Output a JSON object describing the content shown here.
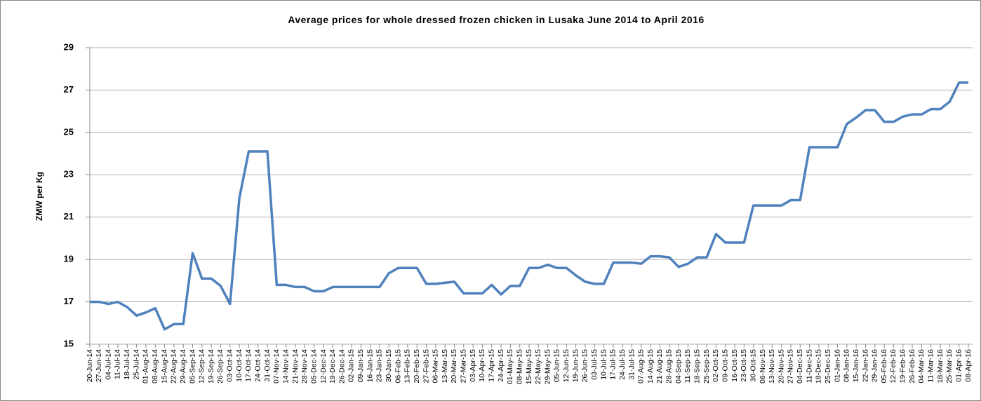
{
  "chart_data": {
    "type": "line",
    "title": "Average prices for whole dressed frozen chicken in Lusaka June 2014 to  April 2016",
    "y_label": "ZMW per Kg",
    "categories": [
      "20-Jun-14",
      "27-Jun-14",
      "04-Jul-14",
      "11-Jul-14",
      "18-Jul-14",
      "25-Jul-14",
      "01-Aug-14",
      "08-Aug-14",
      "15-Aug-14",
      "22-Aug-14",
      "29-Aug-14",
      "05-Sep-14",
      "12-Sep-14",
      "19-Sep-14",
      "26-Sep-14",
      "03-Oct-14",
      "10-Oct-14",
      "17-Oct-14",
      "24-Oct-14",
      "31-Oct-14",
      "07-Nov-14",
      "14-Nov-14",
      "21-Nov-14",
      "28-Nov-14",
      "05-Dec-14",
      "12-Dec-14",
      "19-Dec-14",
      "26-Dec-14",
      "02-Jan-15",
      "09-Jan-15",
      "16-Jan-15",
      "23-Jan-15",
      "30-Jan-15",
      "06-Feb-15",
      "13-Feb-15",
      "20-Feb-15",
      "27-Feb-15",
      "06-Mar-15",
      "13-Mar-15",
      "20-Mar-15",
      "27-Mar-15",
      "03-Apr-15",
      "10-Apr-15",
      "17-Apr-15",
      "24-Apr-15",
      "01-May-15",
      "08-May-15",
      "15-May-15",
      "22-May-15",
      "29-May-15",
      "05-Jun-15",
      "12-Jun-15",
      "19-Jun-15",
      "26-Jun-15",
      "03-Jul-15",
      "10-Jul-15",
      "17-Jul-15",
      "24-Jul-15",
      "31-Jul-15",
      "07-Aug-15",
      "14-Aug-15",
      "21-Aug-15",
      "28-Aug-15",
      "04-Sep-15",
      "11-Sep-15",
      "18-Sep-15",
      "25-Sep-15",
      "02-Oct-15",
      "09-Oct-15",
      "16-Oct-15",
      "23-Oct-15",
      "30-Oct-15",
      "06-Nov-15",
      "13-Nov-15",
      "20-Nov-15",
      "27-Nov-15",
      "04-Dec-15",
      "11-Dec-15",
      "18-Dec-15",
      "25-Dec-15",
      "01-Jan-16",
      "08-Jan-16",
      "15-Jan-16",
      "22-Jan-16",
      "29-Jan-16",
      "05-Feb-16",
      "12-Feb-16",
      "19-Feb-16",
      "26-Feb-16",
      "04-Mar-16",
      "11-Mar-16",
      "18-Mar-16",
      "25-Mar-16",
      "01-Apr-16",
      "08-Apr-16"
    ],
    "values": [
      17.0,
      17.0,
      16.9,
      17.0,
      16.75,
      16.35,
      16.5,
      16.7,
      15.7,
      15.95,
      15.95,
      19.3,
      18.1,
      18.1,
      17.75,
      16.9,
      21.9,
      24.1,
      24.1,
      24.1,
      17.8,
      17.8,
      17.7,
      17.7,
      17.5,
      17.5,
      17.7,
      17.7,
      17.7,
      17.7,
      17.7,
      17.7,
      18.35,
      18.6,
      18.6,
      18.6,
      17.85,
      17.85,
      17.9,
      17.95,
      17.4,
      17.4,
      17.4,
      17.8,
      17.35,
      17.75,
      17.75,
      18.6,
      18.6,
      18.75,
      18.6,
      18.6,
      18.25,
      17.95,
      17.85,
      17.85,
      18.85,
      18.85,
      18.85,
      18.8,
      19.15,
      19.15,
      19.1,
      18.65,
      18.8,
      19.1,
      19.1,
      20.2,
      19.8,
      19.8,
      19.8,
      21.55,
      21.55,
      21.55,
      21.55,
      21.8,
      21.8,
      24.3,
      24.3,
      24.3,
      24.3,
      25.4,
      25.7,
      26.05,
      26.05,
      25.5,
      25.5,
      25.75,
      25.85,
      25.85,
      26.1,
      26.1,
      26.45,
      27.35,
      27.35
    ],
    "color": "#4f81bd",
    "ylim": [
      15,
      29
    ],
    "yticks": [
      15,
      17,
      19,
      21,
      23,
      25,
      27,
      29
    ],
    "grid": true
  }
}
